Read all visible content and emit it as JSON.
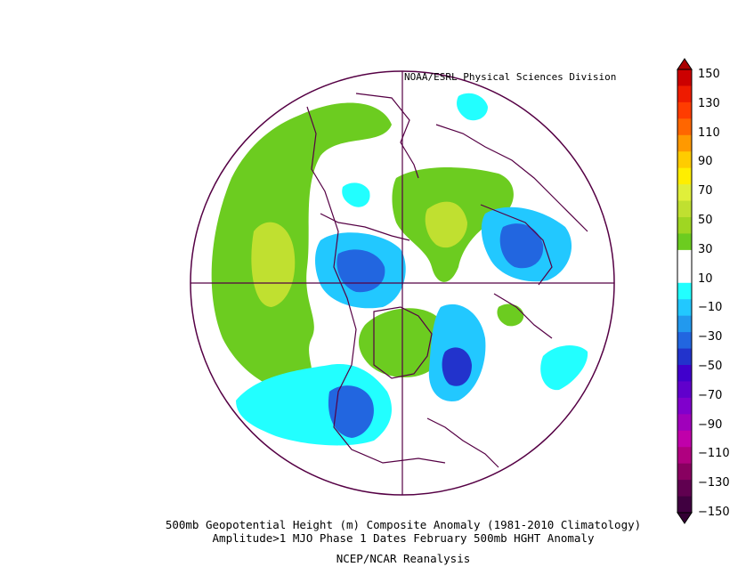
{
  "credit": "NOAA/ESRL Physical Sciences Division",
  "caption": {
    "line1": "500mb Geopotential Height (m) Composite Anomaly (1981-2010 Climatology)",
    "line2": "Amplitude>1 MJO Phase 1 Dates February 500mb HGHT Anomaly",
    "line3": "NCEP/NCAR Reanalysis"
  },
  "colorbar": {
    "ticks": [
      "150",
      "130",
      "110",
      "90",
      "70",
      "50",
      "30",
      "10",
      "−10",
      "−30",
      "−50",
      "−70",
      "−90",
      "−110",
      "−130",
      "−150"
    ],
    "colors": [
      "#cc0000",
      "#ee1b00",
      "#ff3c00",
      "#ff6600",
      "#ff9900",
      "#ffcc00",
      "#ffee00",
      "#e0ef3a",
      "#c0e030",
      "#9fd622",
      "#6ccc20",
      "#ffffff",
      "#ffffff",
      "#22ffff",
      "#22c8ff",
      "#2299ee",
      "#2266e0",
      "#2233cc",
      "#4000cc",
      "#6000cc",
      "#8000cc",
      "#a000bb",
      "#c000aa",
      "#b00080",
      "#880060",
      "#600050",
      "#400040"
    ]
  },
  "map": {
    "projection": "polar-stereographic",
    "regions": [
      {
        "name": "pacific-positive",
        "color": "#6ccc20"
      },
      {
        "name": "pacific-core",
        "color": "#c0e030"
      },
      {
        "name": "north-atlantic-positive",
        "color": "#6ccc20"
      },
      {
        "name": "siberia-positive",
        "color": "#6ccc20"
      },
      {
        "name": "siberia-core",
        "color": "#c0e030"
      },
      {
        "name": "canada-positive",
        "color": "#6ccc20"
      },
      {
        "name": "eastern-asia-negative",
        "color": "#22c8ff"
      },
      {
        "name": "eastern-asia-core",
        "color": "#2266e0"
      },
      {
        "name": "arctic-negative",
        "color": "#22c8ff"
      },
      {
        "name": "arctic-core",
        "color": "#2266e0"
      },
      {
        "name": "atlantic-negative",
        "color": "#22c8ff"
      },
      {
        "name": "atlantic-core",
        "color": "#2233cc"
      },
      {
        "name": "north-america-negative",
        "color": "#22ffff"
      },
      {
        "name": "north-america-core",
        "color": "#2266e0"
      }
    ]
  }
}
